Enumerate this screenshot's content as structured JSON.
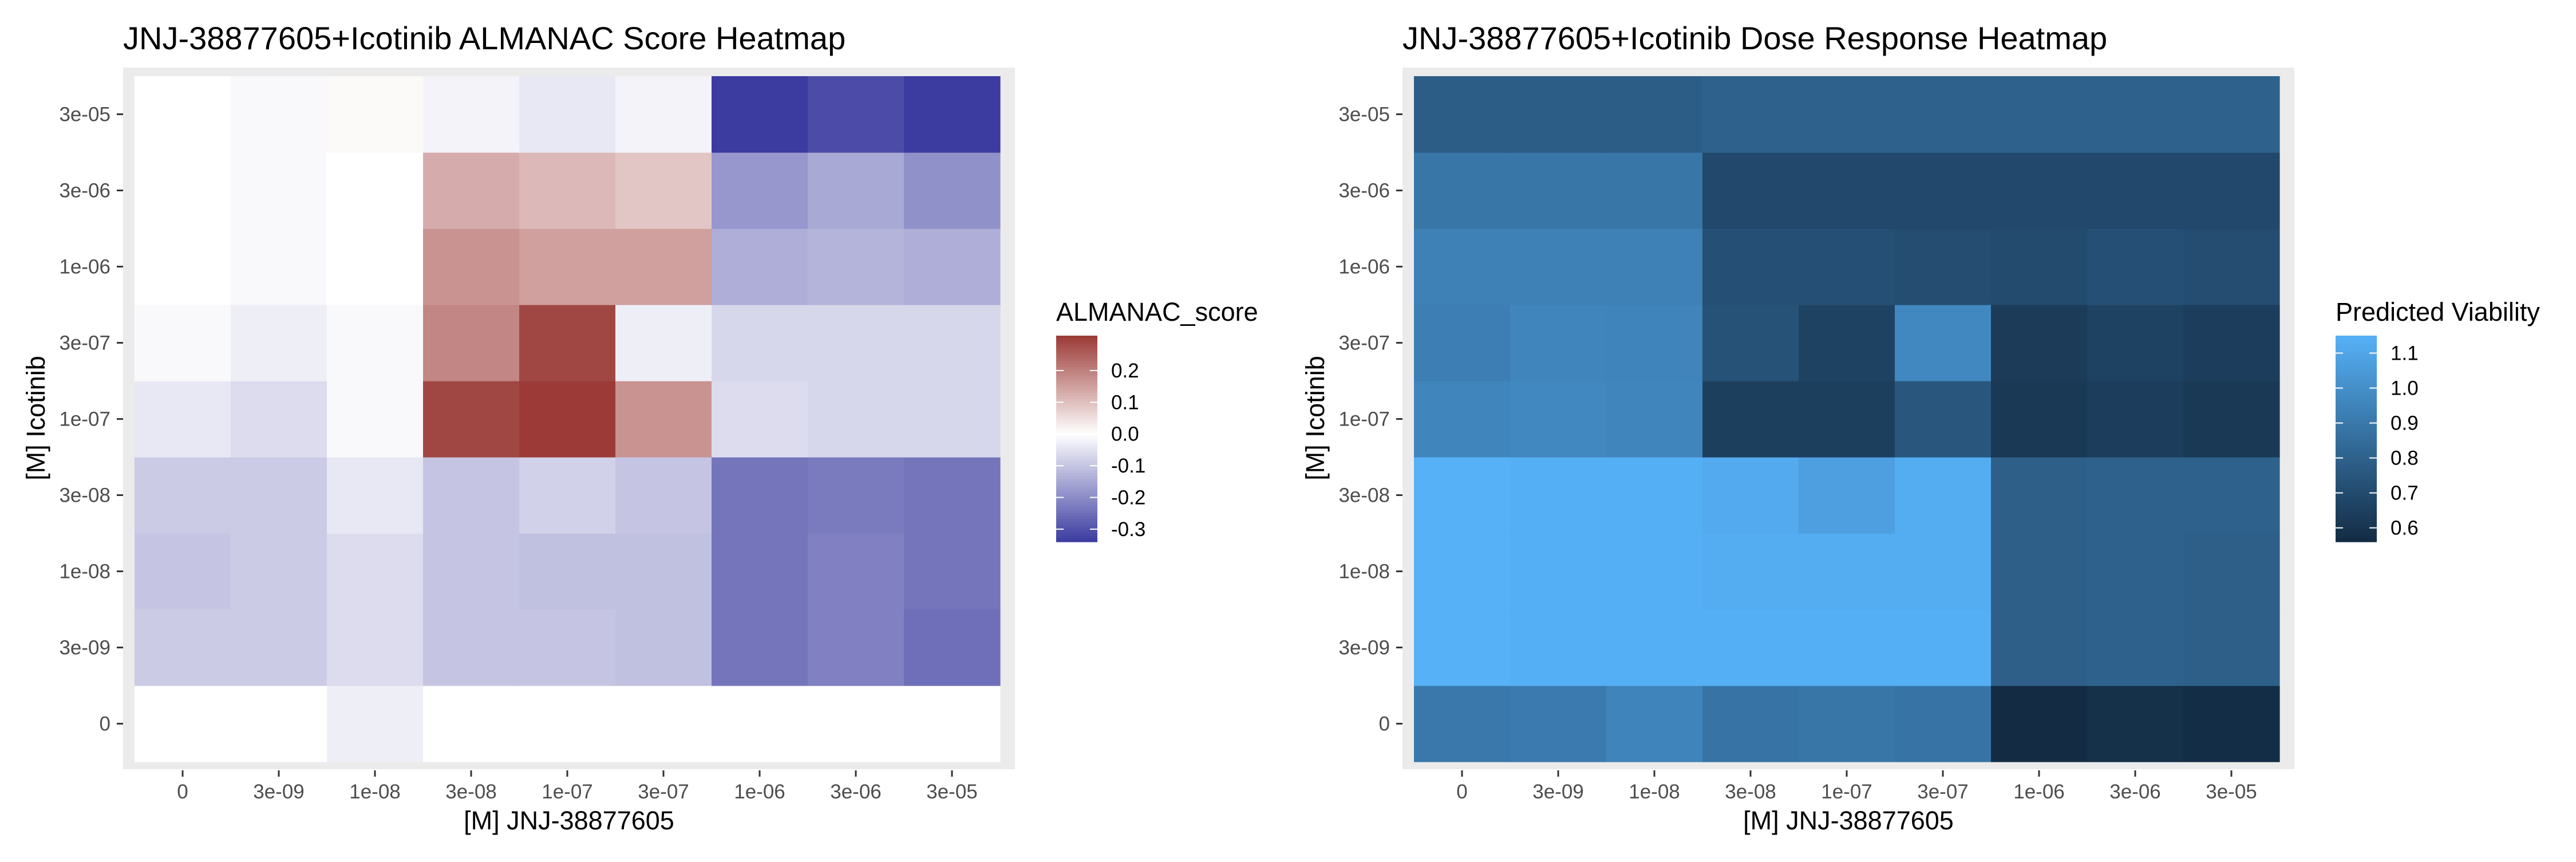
{
  "chart_data": [
    {
      "type": "heatmap",
      "title": "JNJ-38877605+Icotinib ALMANAC Score Heatmap",
      "xlabel": "[M] JNJ-38877605",
      "ylabel": "[M] Icotinib",
      "x": [
        "0",
        "3e-09",
        "1e-08",
        "3e-08",
        "1e-07",
        "3e-07",
        "1e-06",
        "3e-06",
        "3e-05"
      ],
      "y": [
        "0",
        "3e-09",
        "1e-08",
        "3e-08",
        "1e-07",
        "3e-07",
        "1e-06",
        "3e-06",
        "3e-05"
      ],
      "values": [
        [
          0.0,
          0.0,
          -0.03,
          0.0,
          0.0,
          0.0,
          0.0,
          0.0,
          0.0
        ],
        [
          -0.09,
          -0.09,
          -0.06,
          -0.1,
          -0.1,
          -0.11,
          -0.24,
          -0.22,
          -0.25
        ],
        [
          -0.1,
          -0.09,
          -0.06,
          -0.1,
          -0.11,
          -0.11,
          -0.24,
          -0.22,
          -0.24
        ],
        [
          -0.09,
          -0.09,
          -0.04,
          -0.1,
          -0.08,
          -0.1,
          -0.24,
          -0.23,
          -0.24
        ],
        [
          -0.04,
          -0.06,
          -0.01,
          0.29,
          0.31,
          0.17,
          -0.06,
          -0.07,
          -0.07
        ],
        [
          -0.01,
          -0.03,
          -0.01,
          0.19,
          0.29,
          -0.03,
          -0.07,
          -0.07,
          -0.07
        ],
        [
          0.0,
          -0.01,
          0.0,
          0.17,
          0.15,
          0.15,
          -0.14,
          -0.13,
          -0.14
        ],
        [
          0.0,
          -0.01,
          0.0,
          0.13,
          0.11,
          0.09,
          -0.18,
          -0.15,
          -0.19
        ],
        [
          0.0,
          -0.01,
          0.01,
          -0.02,
          -0.04,
          -0.02,
          -0.34,
          -0.31,
          -0.34
        ]
      ],
      "legend": {
        "title": "ALMANAC_score",
        "ticks": [
          0.2,
          0.1,
          0.0,
          -0.1,
          -0.2,
          -0.3
        ],
        "tick_labels": [
          "0.2",
          "0.1",
          "0.0",
          "-0.1",
          "-0.2",
          "-0.3"
        ],
        "range": [
          -0.34,
          0.31
        ],
        "placement": "right"
      },
      "colors": {
        "low": "#3b3ba0",
        "mid": "#ffffff",
        "high": "#9b3a36",
        "panel": "#ebebeb"
      }
    },
    {
      "type": "heatmap",
      "title": "JNJ-38877605+Icotinib Dose Response Heatmap",
      "xlabel": "[M] JNJ-38877605",
      "ylabel": "[M] Icotinib",
      "x": [
        "0",
        "3e-09",
        "1e-08",
        "3e-08",
        "1e-07",
        "3e-07",
        "1e-06",
        "3e-06",
        "3e-05"
      ],
      "y": [
        "0",
        "3e-09",
        "1e-08",
        "3e-08",
        "1e-07",
        "3e-07",
        "1e-06",
        "3e-06",
        "3e-05"
      ],
      "values": [
        [
          0.9,
          0.91,
          0.95,
          0.88,
          0.89,
          0.88,
          0.56,
          0.58,
          0.57
        ],
        [
          1.15,
          1.14,
          1.14,
          1.14,
          1.14,
          1.14,
          0.79,
          0.8,
          0.79
        ],
        [
          1.15,
          1.14,
          1.14,
          1.13,
          1.13,
          1.13,
          0.79,
          0.8,
          0.79
        ],
        [
          1.15,
          1.14,
          1.14,
          1.12,
          1.07,
          1.13,
          0.79,
          0.8,
          0.8
        ],
        [
          0.96,
          0.97,
          0.96,
          0.65,
          0.65,
          0.75,
          0.62,
          0.64,
          0.62
        ],
        [
          0.93,
          0.96,
          0.95,
          0.73,
          0.66,
          0.97,
          0.63,
          0.66,
          0.64
        ],
        [
          0.94,
          0.94,
          0.94,
          0.72,
          0.72,
          0.71,
          0.7,
          0.72,
          0.71
        ],
        [
          0.89,
          0.89,
          0.89,
          0.69,
          0.69,
          0.69,
          0.69,
          0.69,
          0.69
        ],
        [
          0.78,
          0.78,
          0.78,
          0.8,
          0.8,
          0.8,
          0.8,
          0.8,
          0.8
        ]
      ],
      "legend": {
        "title": "Predicted Viability",
        "ticks": [
          1.1,
          1.0,
          0.9,
          0.8,
          0.7,
          0.6
        ],
        "tick_labels": [
          "1.1",
          "1.0",
          "0.9",
          "0.8",
          "0.7",
          "0.6"
        ],
        "range": [
          0.56,
          1.15
        ],
        "placement": "right"
      },
      "colors": {
        "low": "#132b43",
        "high": "#56b1f7",
        "panel": "#ebebeb"
      }
    }
  ]
}
